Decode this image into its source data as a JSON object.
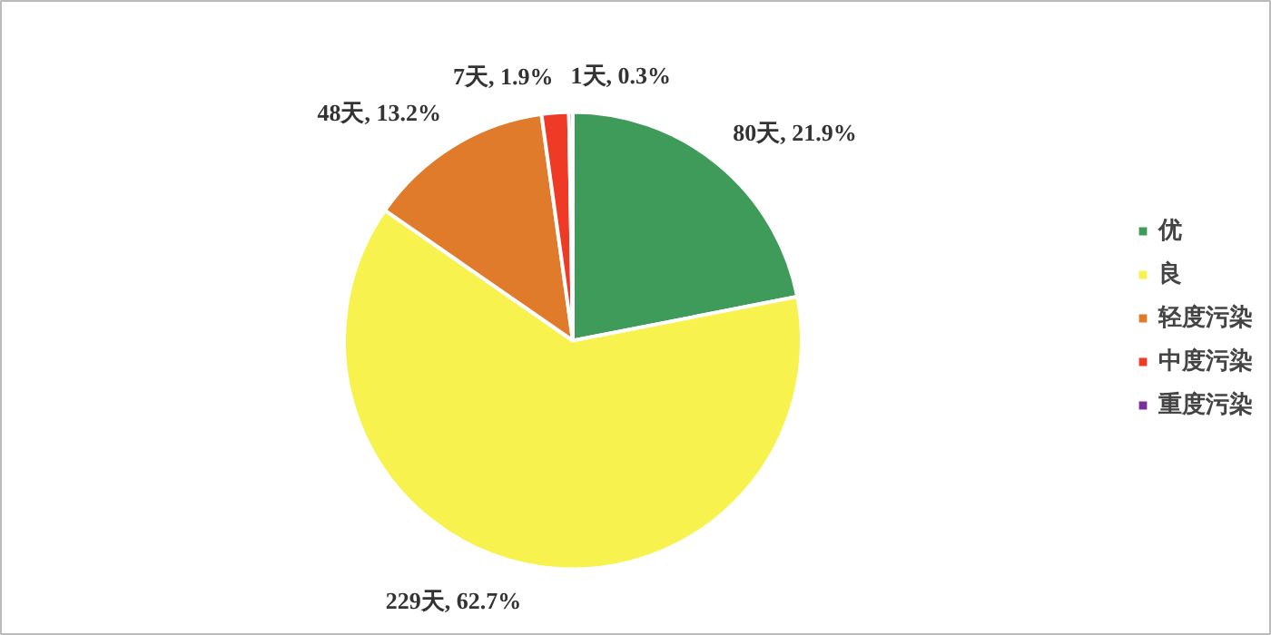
{
  "chart_data": {
    "type": "pie",
    "categories": [
      "优",
      "良",
      "轻度污染",
      "中度污染",
      "重度污染"
    ],
    "values": [
      80,
      229,
      48,
      7,
      1
    ],
    "value_labels": [
      "80天, 21.9%",
      "229天, 62.7%",
      "48天, 13.2%",
      "7天, 1.9%",
      "1天, 0.3%"
    ],
    "colors": [
      "#3f9b5a",
      "#f7f24e",
      "#e07b2b",
      "#ef3b26",
      "#7a2f9a"
    ],
    "legend": "right"
  }
}
